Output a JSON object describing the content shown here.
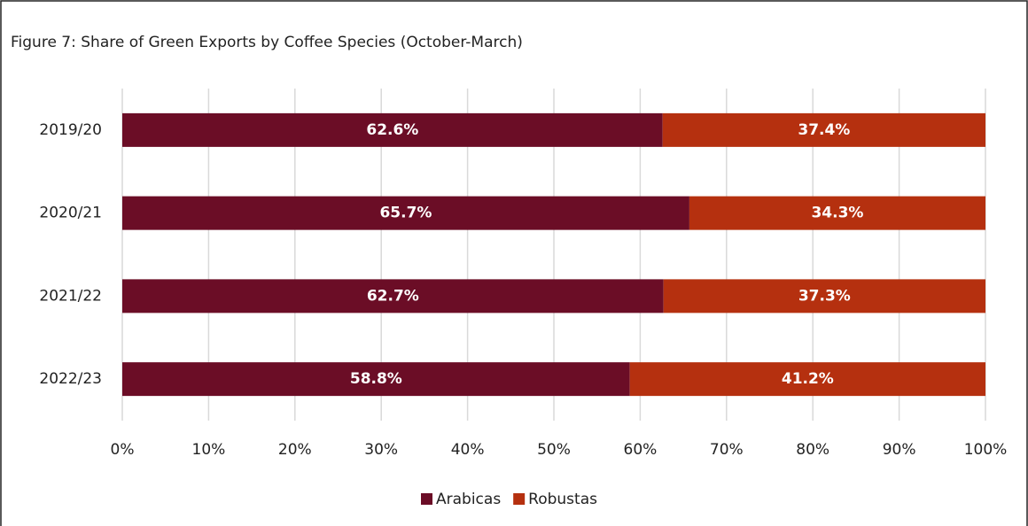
{
  "chart_data": {
    "type": "stacked-bar-horizontal",
    "title": "Figure 7: Share of Green Exports by Coffee Species (October-March)",
    "categories": [
      "2019/20",
      "2020/21",
      "2021/22",
      "2022/23"
    ],
    "series": [
      {
        "name": "Arabicas",
        "color": "#6b0d26",
        "values": [
          62.6,
          65.7,
          62.7,
          58.8
        ],
        "value_labels": [
          "62.6%",
          "65.7%",
          "62.7%",
          "58.8%"
        ]
      },
      {
        "name": "Robustas",
        "color": "#b5300f",
        "values": [
          37.4,
          34.3,
          37.3,
          41.2
        ],
        "value_labels": [
          "37.4%",
          "34.3%",
          "37.3%",
          "41.2%"
        ]
      }
    ],
    "xlim": [
      0,
      100
    ],
    "xticks": [
      {
        "value": 0,
        "label": "0%"
      },
      {
        "value": 10,
        "label": "10%"
      },
      {
        "value": 20,
        "label": "20%"
      },
      {
        "value": 30,
        "label": "30%"
      },
      {
        "value": 40,
        "label": "40%"
      },
      {
        "value": 50,
        "label": "50%"
      },
      {
        "value": 60,
        "label": "60%"
      },
      {
        "value": 70,
        "label": "70%"
      },
      {
        "value": 80,
        "label": "80%"
      },
      {
        "value": 90,
        "label": "90%"
      },
      {
        "value": 100,
        "label": "100%"
      }
    ],
    "grid": true,
    "legend": "bottom"
  }
}
